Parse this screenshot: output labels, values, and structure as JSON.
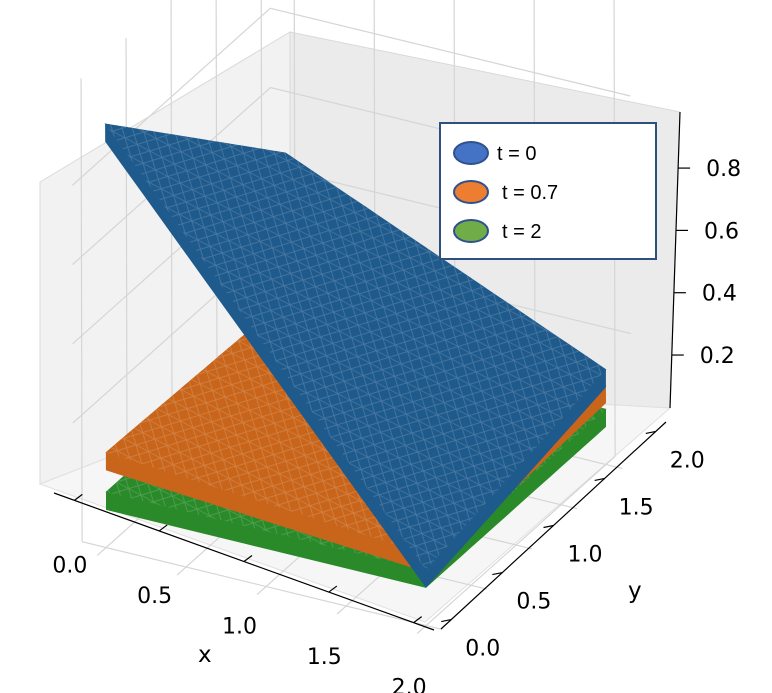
{
  "chart_data": {
    "type": "surface3d",
    "xlabel": "x",
    "ylabel": "y",
    "zlabel": "",
    "xlim": [
      0,
      2
    ],
    "ylim": [
      0,
      2
    ],
    "zlim": [
      0,
      0.95
    ],
    "x_ticks": [
      "0.0",
      "0.5",
      "1.0",
      "1.5",
      "2.0"
    ],
    "y_ticks": [
      "0.0",
      "0.5",
      "1.0",
      "1.5",
      "2.0"
    ],
    "z_ticks": [
      "0.2",
      "0.4",
      "0.6",
      "0.8"
    ],
    "grid": true,
    "legend_position": "top-right",
    "series": [
      {
        "name": "t = 0",
        "color": "#1f5a8c",
        "legend_color": "#4472c4",
        "corners": {
          "x0y0": 0.95,
          "x2y0": 0.02,
          "x0y2": 0.47,
          "x2y2": 0.12
        }
      },
      {
        "name": "t = 0.7",
        "color": "#c8651b",
        "legend_color": "#ed7d31",
        "corners": {
          "x0y0": 0.12,
          "x2y0": 0.06,
          "x0y2": 0.1,
          "x2y2": 0.08
        }
      },
      {
        "name": "t = 2",
        "color": "#2a8a2a",
        "legend_color": "#70ad47",
        "corners": {
          "x0y0": 0.02,
          "x2y0": 0.02,
          "x0y2": 0.02,
          "x2y2": 0.02
        }
      }
    ]
  }
}
